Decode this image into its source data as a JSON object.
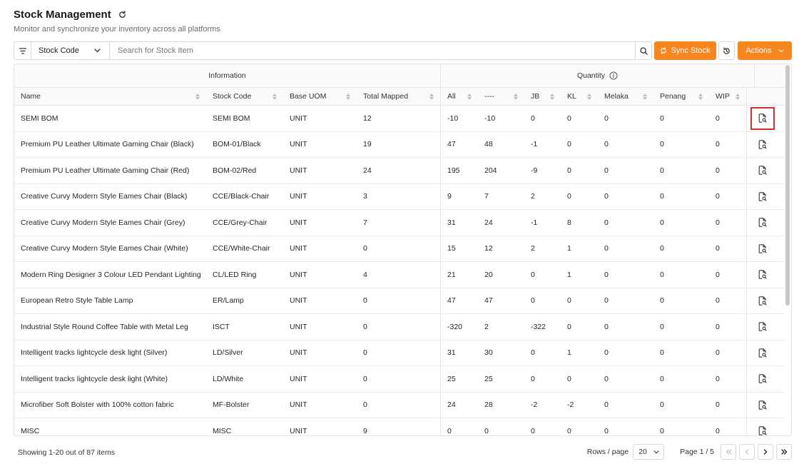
{
  "header": {
    "title": "Stock Management",
    "subtitle": "Monitor and synchronize your inventory across all platforms"
  },
  "toolbar": {
    "filter_field": "Stock Code",
    "search_placeholder": "Search for Stock Item",
    "sync_label": "Sync Stock",
    "actions_label": "Actions"
  },
  "table": {
    "groups": {
      "information": "Information",
      "quantity": "Quantity"
    },
    "columns": [
      "Name",
      "Stock Code",
      "Base UOM",
      "Total Mapped",
      "All",
      "----",
      "JB",
      "KL",
      "Melaka",
      "Penang",
      "WIP"
    ],
    "rows": [
      [
        "SEMI BOM",
        "SEMI BOM",
        "UNIT",
        "12",
        "-10",
        "-10",
        "0",
        "0",
        "0",
        "0",
        "0"
      ],
      [
        "Premium PU Leather Ultimate Gaming Chair (Black)",
        "BOM-01/Black",
        "UNIT",
        "19",
        "47",
        "48",
        "-1",
        "0",
        "0",
        "0",
        "0"
      ],
      [
        "Premium PU Leather Ultimate Gaming Chair (Red)",
        "BOM-02/Red",
        "UNIT",
        "24",
        "195",
        "204",
        "-9",
        "0",
        "0",
        "0",
        "0"
      ],
      [
        "Creative Curvy Modern Style Eames Chair (Black)",
        "CCE/Black-Chair",
        "UNIT",
        "3",
        "9",
        "7",
        "2",
        "0",
        "0",
        "0",
        "0"
      ],
      [
        "Creative Curvy Modern Style Eames Chair (Grey)",
        "CCE/Grey-Chair",
        "UNIT",
        "7",
        "31",
        "24",
        "-1",
        "8",
        "0",
        "0",
        "0"
      ],
      [
        "Creative Curvy Modern Style Eames Chair (White)",
        "CCE/White-Chair",
        "UNIT",
        "0",
        "15",
        "12",
        "2",
        "1",
        "0",
        "0",
        "0"
      ],
      [
        "Modern Ring Designer 3 Colour LED Pendant Lighting",
        "CL/LED Ring",
        "UNIT",
        "4",
        "21",
        "20",
        "0",
        "1",
        "0",
        "0",
        "0"
      ],
      [
        "European Retro Style Table Lamp",
        "ER/Lamp",
        "UNIT",
        "0",
        "47",
        "47",
        "0",
        "0",
        "0",
        "0",
        "0"
      ],
      [
        "Industrial Style Round Coffee Table with Metal Leg",
        "ISCT",
        "UNIT",
        "0",
        "-320",
        "2",
        "-322",
        "0",
        "0",
        "0",
        "0"
      ],
      [
        "Intelligent tracks lightcycle desk light (Silver)",
        "LD/Silver",
        "UNIT",
        "0",
        "31",
        "30",
        "0",
        "1",
        "0",
        "0",
        "0"
      ],
      [
        "Intelligent tracks lightcycle desk light (White)",
        "LD/White",
        "UNIT",
        "0",
        "25",
        "25",
        "0",
        "0",
        "0",
        "0",
        "0"
      ],
      [
        "Microfiber Soft Bolster with 100% cotton fabric",
        "MF-Bolster",
        "UNIT",
        "0",
        "24",
        "28",
        "-2",
        "-2",
        "0",
        "0",
        "0"
      ],
      [
        "MISC",
        "MISC",
        "UNIT",
        "9",
        "0",
        "0",
        "0",
        "0",
        "0",
        "0",
        "0"
      ]
    ]
  },
  "footer": {
    "showing": "Showing 1-20 out of 87 items",
    "rows_per_page_label": "Rows / page",
    "rows_per_page": "20",
    "page": "Page 1 / 5"
  },
  "colors": {
    "accent": "#f7861f",
    "highlight": "#d42d2d"
  },
  "icons": {
    "refresh": "refresh-icon",
    "filter": "filter-icon",
    "search": "search-icon",
    "history": "history-icon",
    "row_action": "document-search-icon",
    "info": "info-icon"
  }
}
